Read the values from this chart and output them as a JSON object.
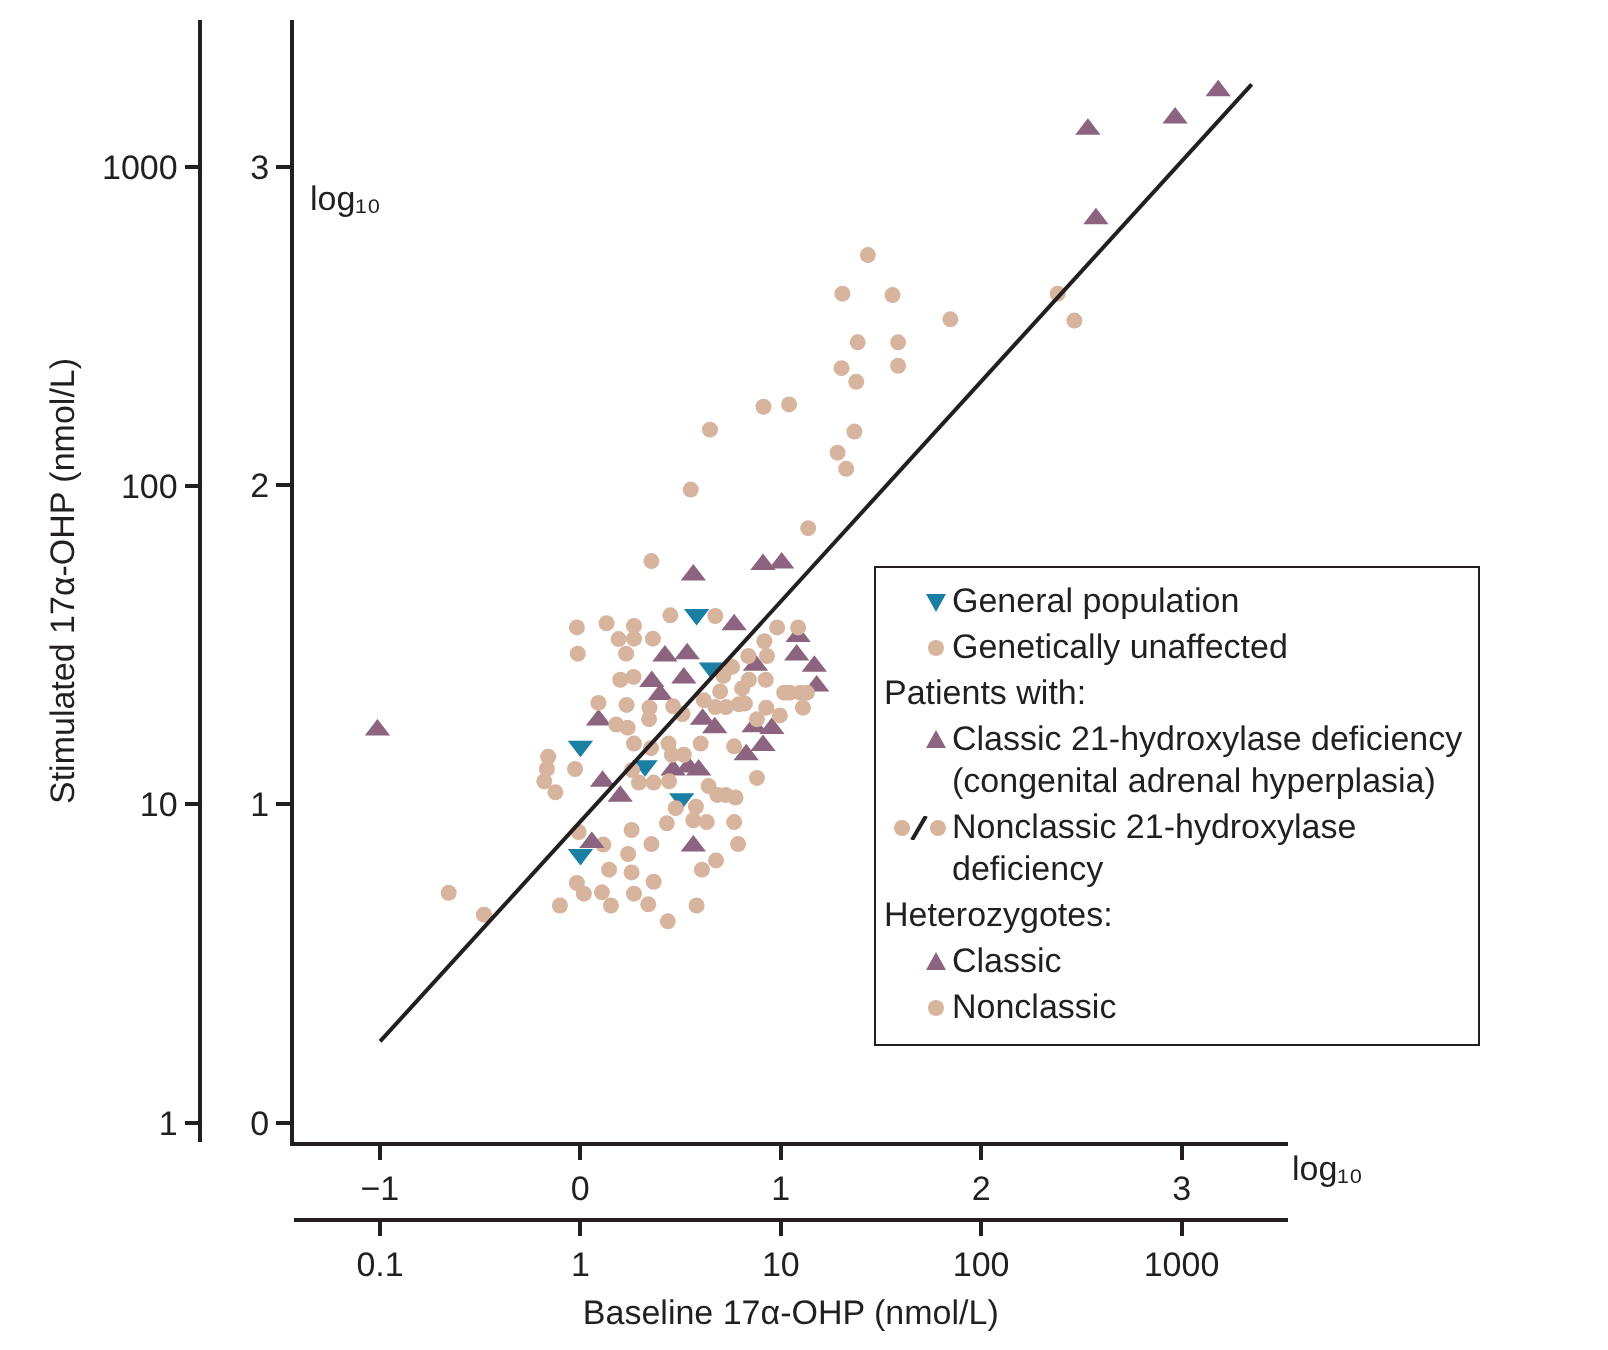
{
  "chart_data": {
    "type": "scatter",
    "xlabel": "Baseline 17α-OHP (nmol/L)",
    "ylabel": "Stimulated 17α-OHP (nmol/L)",
    "x2label": "log₁₀",
    "y2label": "log₁₀",
    "log": "xy",
    "grid": false,
    "legend": "right",
    "xlim": [
      0.037,
      3400
    ],
    "xticks": [
      0.1,
      1,
      10,
      100,
      1000
    ],
    "ylim": [
      0.87,
      2900
    ],
    "yticks": [
      1,
      10,
      100,
      1000
    ],
    "x2lim": [
      -1.43,
      3.53
    ],
    "x2ticks": [
      {
        "value": -1,
        "label": "−1"
      },
      0,
      1,
      2,
      3
    ],
    "y2lim": [
      -0.06,
      3.46
    ],
    "y2ticks": [
      0,
      1,
      2,
      3
    ],
    "annotations": [
      "Patients with:",
      "Heterozygotes:"
    ],
    "series": [
      {
        "name": "General population",
        "color": "#1a7fa3",
        "marker": "triangle-down",
        "x": [
          3.8,
          4.5,
          1.0,
          2.1,
          3.2,
          1.0
        ],
        "values": [
          39.4,
          26.8,
          15.2,
          13.2,
          10.4,
          6.95
        ]
      },
      {
        "name": "Genetically unaffected",
        "color": "#d7b49e",
        "marker": "circle",
        "x": [
          2.99,
          3.77,
          2.7,
          3.66,
          4.27,
          5.85,
          0.98,
          1.8,
          1.3,
          2.26,
          6.12,
          1.73,
          4.75,
          1.39,
          1.8,
          4.04,
          0.96,
          2.32,
          1.04,
          1.28,
          1.85,
          0.79,
          1.42,
          2.18,
          3.8,
          2.73,
          0.22,
          0.33
        ],
        "values": [
          9.72,
          9.82,
          8.71,
          8.91,
          8.79,
          8.79,
          8.18,
          8.3,
          7.47,
          7.5,
          7.5,
          6.98,
          6.66,
          6.23,
          6.11,
          6.23,
          5.66,
          5.71,
          5.24,
          5.29,
          5.24,
          4.81,
          4.81,
          4.85,
          4.81,
          4.29,
          5.27,
          4.5
        ]
      },
      {
        "name": "Classic 21-hydroxylase deficiency\n(congenital adrenal hyperplasia)",
        "color": "#8c6480",
        "marker": "triangle",
        "x": [
          341,
          929,
          1524,
          374,
          0.097
        ],
        "values": [
          1316,
          1428,
          1738,
          689,
          17.1
        ]
      },
      {
        "name": "Nonclassic 21-hydroxylase\ndeficiency",
        "color": "#d7b49e",
        "marker": "circle",
        "x": [
          27.2,
          20.3,
          36.1,
          70.2,
          24.2,
          38.5,
          20.1,
          23.8,
          38.5,
          8.2,
          11.0,
          4.43,
          23.3,
          19.2,
          21.2,
          3.55,
          13.7,
          2.26,
          241,
          292
        ],
        "values": [
          530,
          401,
          397,
          333,
          282,
          282,
          234,
          212,
          238,
          177,
          180,
          150,
          148,
          127,
          113,
          97.3,
          73.6,
          58.0,
          401,
          330
        ]
      },
      {
        "name": "Classic",
        "color": "#8c6480",
        "marker": "triangle",
        "x": [
          3.66,
          8.15,
          10.1,
          5.85,
          12.2,
          2.64,
          3.41,
          12.0,
          14.7,
          7.48,
          2.27,
          3.28,
          2.5,
          15.1,
          1.23,
          4.07,
          4.68,
          7.36,
          9.02,
          8.15,
          6.72,
          2.9,
          3.46,
          3.89,
          1.29,
          1.58,
          1.14,
          3.66
        ],
        "values": [
          52.5,
          56.6,
          57.2,
          36.6,
          33.6,
          29.2,
          29.7,
          29.4,
          27.1,
          27.3,
          24.3,
          24.9,
          22.1,
          23.5,
          18.4,
          18.5,
          17.4,
          17.5,
          17.3,
          15.3,
          14.3,
          12.8,
          13.1,
          12.8,
          11.8,
          10.6,
          7.58,
          7.4
        ]
      },
      {
        "name": "Nonclassic",
        "color": "#d7b49e",
        "marker": "circle",
        "x": [
          0.96,
          1.35,
          1.85,
          2.81,
          4.71,
          1.55,
          1.85,
          2.3,
          0.97,
          1.69,
          9.59,
          12.2,
          8.28,
          6.88,
          8.53,
          5.71,
          5.17,
          6.93,
          8.41,
          1.58,
          1.84,
          4.98,
          6.41,
          11.1,
          12.5,
          10.4,
          13.5,
          1.23,
          1.7,
          2.21,
          2.9,
          4.13,
          4.71,
          5.33,
          6.18,
          6.62,
          8.47,
          12.9,
          2.2,
          1.51,
          1.72,
          3.23,
          7.6,
          9.89,
          1.85,
          2.25,
          2.75,
          3.98,
          5.85,
          0.69,
          0.68,
          0.94,
          0.66,
          0.75,
          1.81,
          2.86,
          3.28,
          1.96,
          2.32,
          2.77,
          4.36,
          4.82,
          5.3,
          5.94,
          7.6
        ],
        "values": [
          35.9,
          37.0,
          36.3,
          39.2,
          39.0,
          33.0,
          33.1,
          33.1,
          29.7,
          29.7,
          35.9,
          35.9,
          32.5,
          29.2,
          29.2,
          27.0,
          25.3,
          24.6,
          24.6,
          24.6,
          25.1,
          22.6,
          23.1,
          22.4,
          22.4,
          22.4,
          22.4,
          20.8,
          20.5,
          20.1,
          20.3,
          21.2,
          20.2,
          20.2,
          20.6,
          20.7,
          20.1,
          20.1,
          18.5,
          17.8,
          17.4,
          19.2,
          18.5,
          19.0,
          15.5,
          15.0,
          15.5,
          15.5,
          15.2,
          14.1,
          12.9,
          12.9,
          11.8,
          10.9,
          12.8,
          14.3,
          14.3,
          11.7,
          11.7,
          11.8,
          11.4,
          10.7,
          10.7,
          10.5,
          12.1
        ]
      },
      {
        "type": "line",
        "color": "#231f20",
        "line_style": "solid",
        "x": [
          0.1,
          2240
        ],
        "values": [
          1.8,
          1820
        ]
      }
    ]
  }
}
